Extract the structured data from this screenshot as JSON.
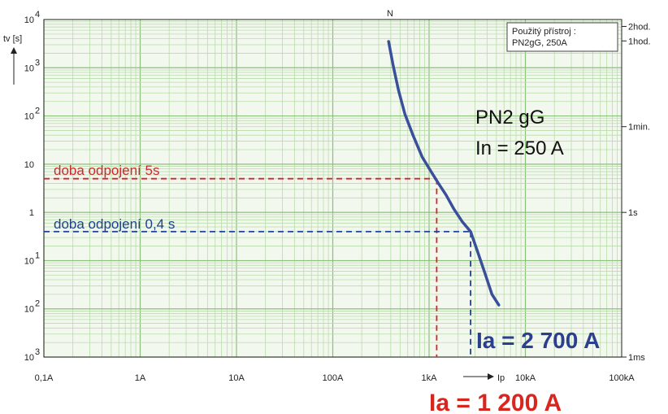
{
  "chart_data": {
    "type": "line",
    "x_scale": "log",
    "y_scale": "log",
    "xlim": [
      0.1,
      100000
    ],
    "ylim": [
      0.001,
      10000
    ],
    "grid": true,
    "ylabel": "tv [s]",
    "x_tick_labels": [
      "0,1A",
      "1A",
      "10A",
      "100A",
      "1kA",
      "10kA",
      "100kA"
    ],
    "x_axis_marker": "Ip",
    "y_tick_labels": [
      {
        "base": "10",
        "exp": "3"
      },
      {
        "base": "10",
        "exp": "2"
      },
      {
        "base": "10",
        "exp": "1"
      },
      {
        "base": "1",
        "exp": ""
      },
      {
        "base": "10",
        "exp": ""
      },
      {
        "base": "10",
        "exp": "2"
      },
      {
        "base": "10",
        "exp": "3"
      },
      {
        "base": "10",
        "exp": "4"
      }
    ],
    "right_tick_labels": [
      "2hod.",
      "1hod.",
      "1min.",
      "1s",
      "1ms"
    ],
    "top_label": "N",
    "info_box": [
      "Použitý přístroj :",
      "PN2gG, 250A"
    ],
    "series": [
      {
        "name": "PN2 gG In = 250 A",
        "color": "#3a4f9a",
        "x": [
          380,
          420,
          480,
          560,
          680,
          850,
          1050,
          1250,
          1500,
          1800,
          2200,
          2700,
          3200,
          3800,
          4500,
          5300
        ],
        "y": [
          3500,
          1200,
          350,
          110,
          40,
          14,
          7,
          4,
          2.3,
          1.2,
          0.65,
          0.4,
          0.15,
          0.055,
          0.02,
          0.012
        ]
      }
    ],
    "annotations": {
      "device_label": "PN2 gG",
      "current_label": "In = 250 A",
      "line_5s": {
        "label": "doba odpojení 5s",
        "y": 5,
        "x": 1200,
        "color": "#cc2a2a"
      },
      "line_04s": {
        "label": "doba odpojení 0,4  s",
        "y": 0.4,
        "x": 2700,
        "color": "#1f3f8f"
      },
      "ia_1200": {
        "label": "Ia = 1 200 A",
        "color": "#d8261e"
      },
      "ia_2700": {
        "label": "Ia = 2 700 A",
        "color": "#2b3f8f"
      }
    }
  }
}
